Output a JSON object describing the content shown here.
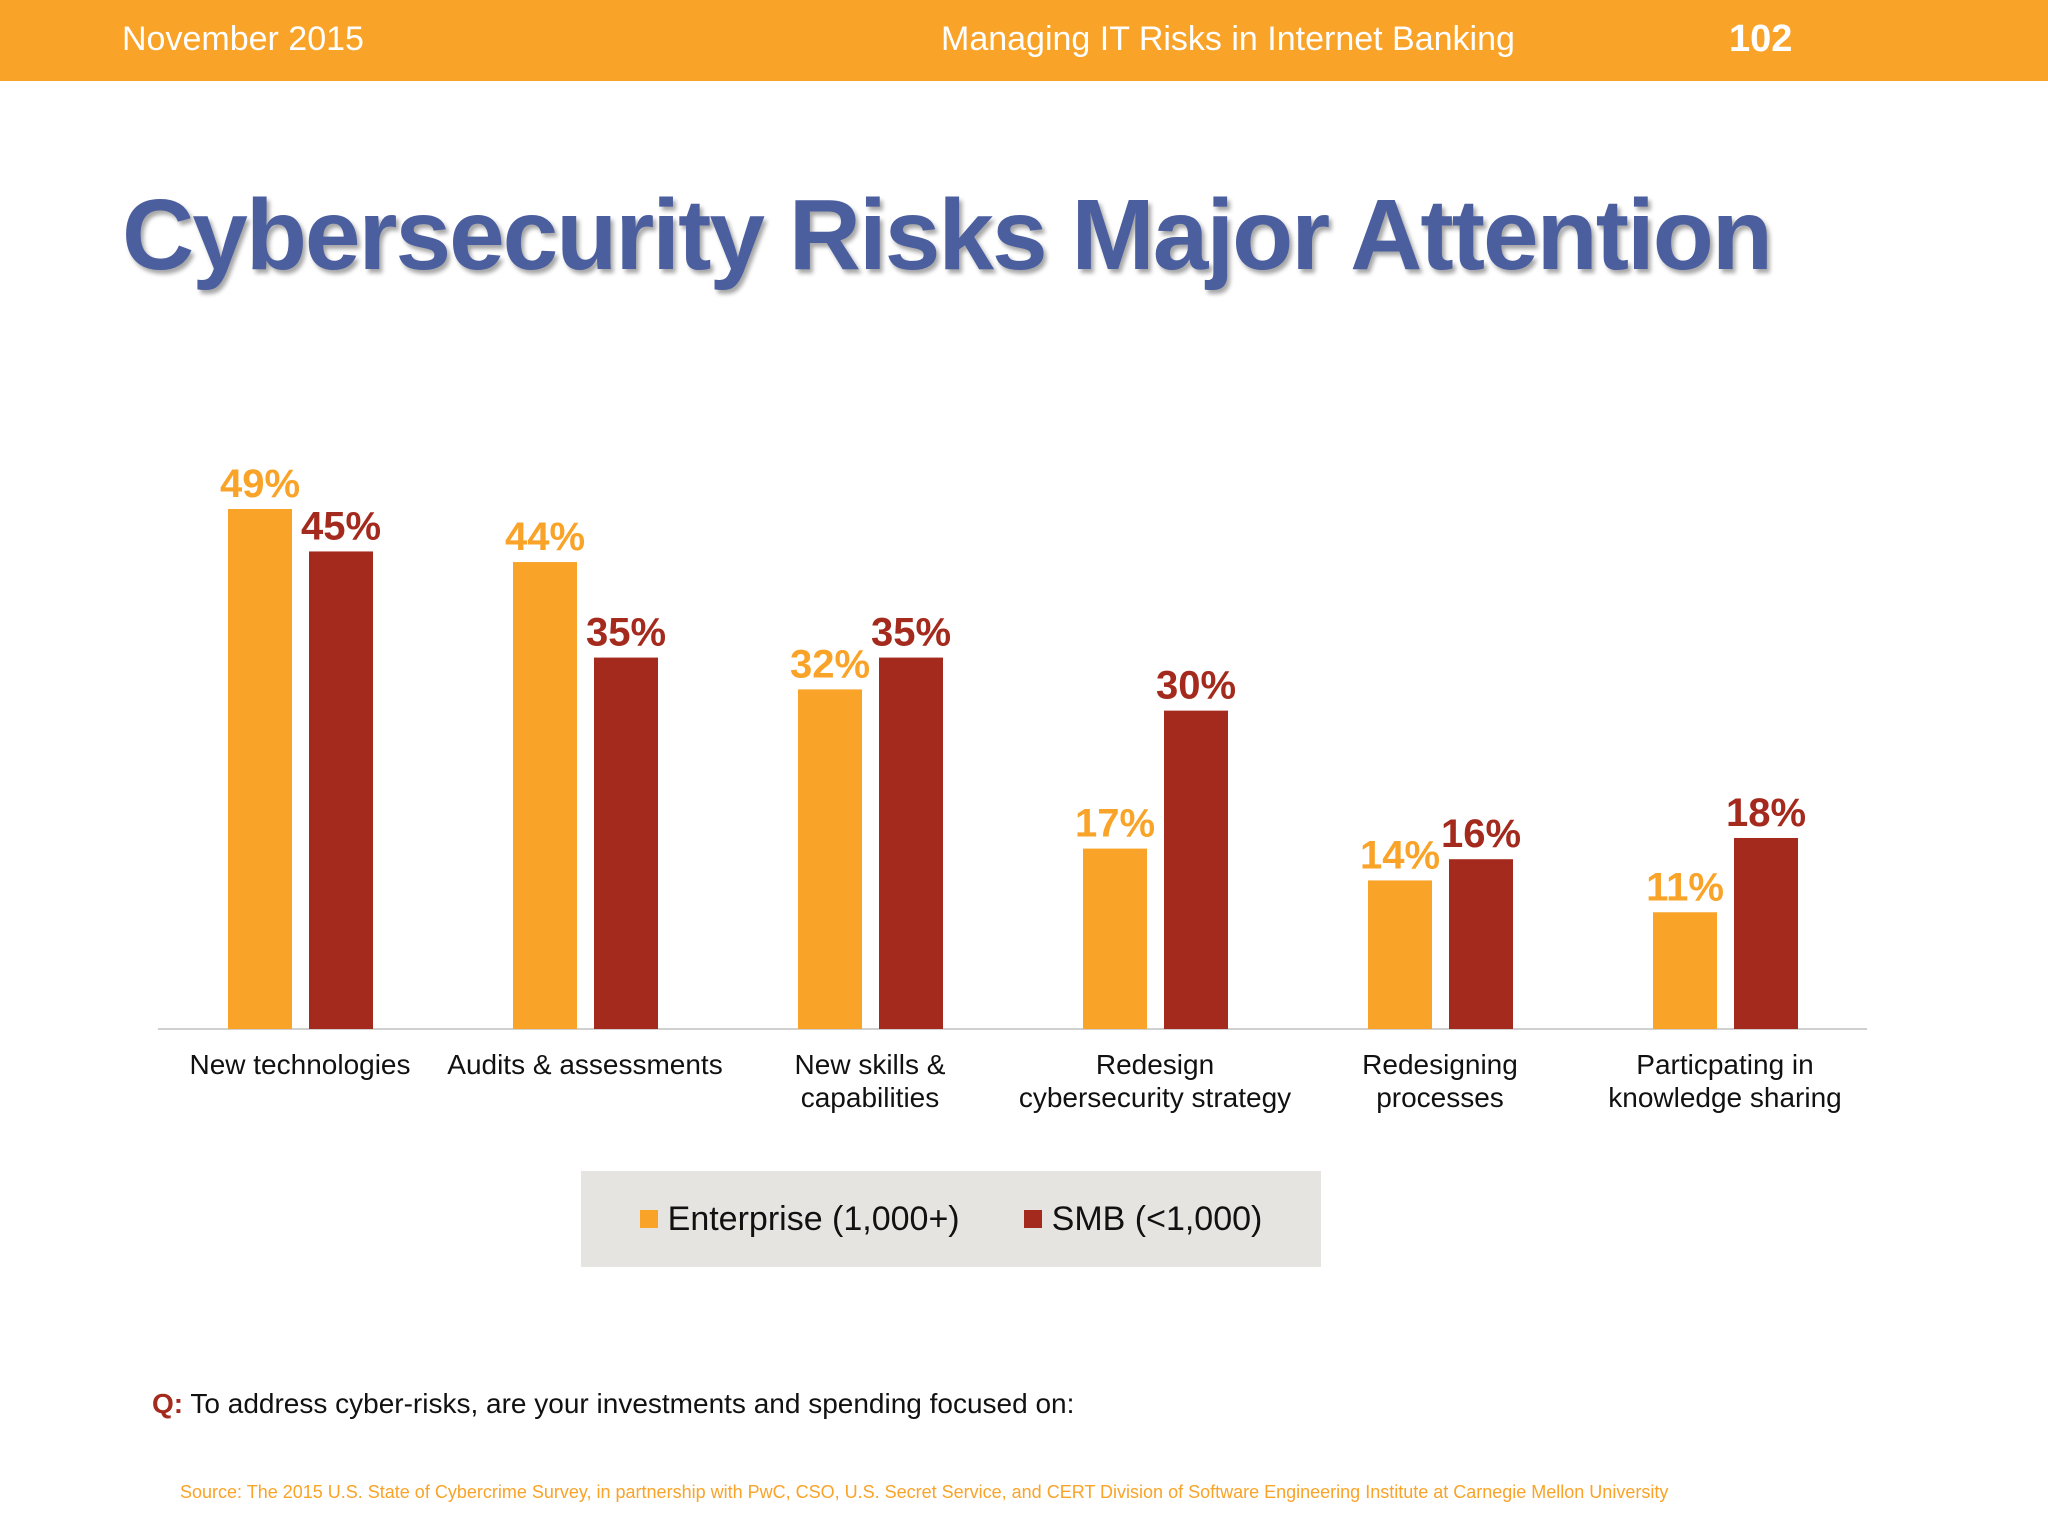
{
  "header": {
    "date": "November 2015",
    "deck_title": "Managing IT Risks in Internet Banking",
    "page_number": "102"
  },
  "title": "Cybersecurity Risks Major Attention",
  "question": {
    "prefix": "Q:",
    "text": "To address cyber-risks, are your investments and spending focused on:"
  },
  "source": "Source: The 2015 U.S. State of Cybercrime Survey, in partnership with PwC, CSO, U.S. Secret Service, and CERT Division of Software Engineering Institute at Carnegie Mellon University",
  "colors": {
    "enterprise": "#f9a328",
    "smb": "#a52a1e",
    "title": "#4b5e9e"
  },
  "chart_data": {
    "type": "bar",
    "categories": [
      "New technologies",
      "Audits & assessments",
      "New skills & capabilities",
      "Redesign cybersecurity strategy",
      "Redesigning processes",
      "Particpating in knowledge sharing"
    ],
    "category_lines": [
      [
        "New technologies"
      ],
      [
        "Audits & assessments"
      ],
      [
        "New skills &",
        "capabilities"
      ],
      [
        "Redesign",
        "cybersecurity strategy"
      ],
      [
        "Redesigning",
        "processes"
      ],
      [
        "Particpating in",
        "knowledge sharing"
      ]
    ],
    "series": [
      {
        "name": "Enterprise (1,000+)",
        "values": [
          49,
          44,
          32,
          17,
          14,
          11
        ],
        "color": "#f9a328"
      },
      {
        "name": "SMB (<1,000)",
        "values": [
          45,
          35,
          35,
          30,
          16,
          18
        ],
        "color": "#a52a1e"
      }
    ],
    "value_suffix": "%",
    "ylim": [
      0,
      49
    ],
    "grid": false,
    "legend_position": "bottom"
  }
}
